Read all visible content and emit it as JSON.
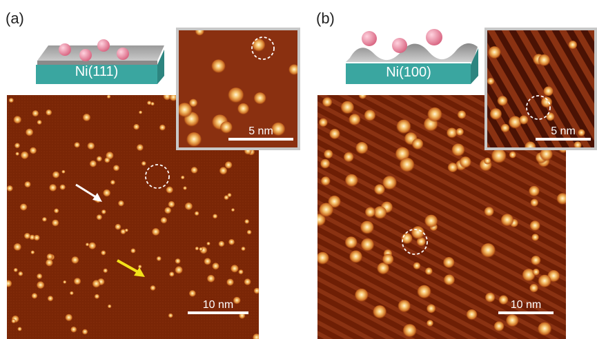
{
  "panels": [
    {
      "label": "(a)",
      "substrate": "Ni(111)",
      "scale_main": "10 nm",
      "scale_inset": "5 nm",
      "colors": {
        "background": "#7a2606",
        "substrate": "#3aa6a0",
        "cluster": "#e98aa2"
      }
    },
    {
      "label": "(b)",
      "substrate": "Ni(100)",
      "scale_main": "10 nm",
      "scale_inset": "5 nm",
      "colors": {
        "background": "#6e1f05",
        "substrate": "#3aa6a0",
        "cluster": "#e98aa2"
      }
    }
  ],
  "annotations": {
    "arrow_white": "white-arrow",
    "arrow_yellow": "yellow-arrow",
    "dashed_circle": "dashed-circle"
  }
}
